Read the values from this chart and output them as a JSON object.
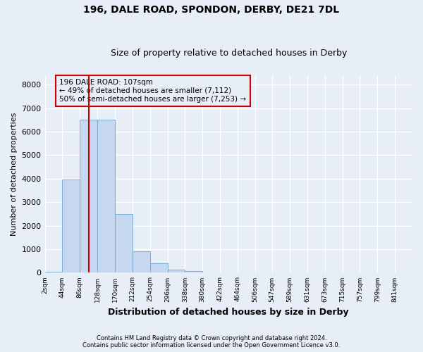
{
  "title1": "196, DALE ROAD, SPONDON, DERBY, DE21 7DL",
  "title2": "Size of property relative to detached houses in Derby",
  "xlabel": "Distribution of detached houses by size in Derby",
  "ylabel": "Number of detached properties",
  "bar_color": "#c5d8f0",
  "bar_edge_color": "#7aadd4",
  "annotation_line_color": "#cc0000",
  "annotation_box_color": "#cc0000",
  "annotation_line1": "196 DALE ROAD: 107sqm",
  "annotation_line2": "← 49% of detached houses are smaller (7,112)",
  "annotation_line3": "50% of semi-detached houses are larger (7,253) →",
  "property_sqm": 107,
  "background_color": "#e8eef8",
  "grid_color": "#ffffff",
  "footer1": "Contains HM Land Registry data © Crown copyright and database right 2024.",
  "footer2": "Contains public sector information licensed under the Open Government Licence v3.0.",
  "bin_labels": [
    "2sqm",
    "44sqm",
    "86sqm",
    "128sqm",
    "170sqm",
    "212sqm",
    "254sqm",
    "296sqm",
    "338sqm",
    "380sqm",
    "422sqm",
    "464sqm",
    "506sqm",
    "547sqm",
    "589sqm",
    "631sqm",
    "673sqm",
    "715sqm",
    "757sqm",
    "799sqm",
    "841sqm"
  ],
  "bin_edges": [
    2,
    44,
    86,
    128,
    170,
    212,
    254,
    296,
    338,
    380,
    422,
    464,
    506,
    547,
    589,
    631,
    673,
    715,
    757,
    799,
    841
  ],
  "bar_heights": [
    30,
    3950,
    6500,
    6500,
    2500,
    900,
    400,
    130,
    80,
    20,
    8,
    0,
    0,
    0,
    0,
    0,
    0,
    0,
    0,
    0
  ],
  "ylim": [
    0,
    8400
  ],
  "yticks": [
    0,
    1000,
    2000,
    3000,
    4000,
    5000,
    6000,
    7000,
    8000
  ]
}
